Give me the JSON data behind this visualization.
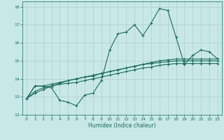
{
  "xlabel": "Humidex (Indice chaleur)",
  "ylabel": "",
  "xlim": [
    -0.5,
    23.5
  ],
  "ylim": [
    12,
    18.3
  ],
  "yticks": [
    12,
    13,
    14,
    15,
    16,
    17,
    18
  ],
  "xticks": [
    0,
    1,
    2,
    3,
    4,
    5,
    6,
    7,
    8,
    9,
    10,
    11,
    12,
    13,
    14,
    15,
    16,
    17,
    18,
    19,
    20,
    21,
    22,
    23
  ],
  "background_color": "#c8e8e8",
  "grid_color": "#b0cccc",
  "line_color": "#1a6b5a",
  "lines": [
    [
      12.9,
      13.6,
      13.6,
      13.5,
      12.8,
      12.7,
      12.5,
      13.1,
      13.2,
      13.9,
      15.6,
      16.5,
      16.6,
      17.0,
      16.4,
      17.1,
      17.9,
      17.8,
      16.3,
      14.8,
      15.3,
      15.6,
      15.5,
      15.1
    ],
    [
      12.9,
      13.6,
      13.6,
      13.7,
      13.8,
      13.9,
      14.0,
      14.1,
      14.15,
      14.3,
      14.4,
      14.5,
      14.6,
      14.7,
      14.8,
      14.9,
      15.0,
      15.05,
      15.1,
      15.1,
      15.1,
      15.1,
      15.1,
      15.1
    ],
    [
      12.9,
      13.2,
      13.4,
      13.6,
      13.75,
      13.9,
      14.0,
      14.1,
      14.2,
      14.3,
      14.4,
      14.5,
      14.6,
      14.7,
      14.8,
      14.85,
      14.9,
      14.95,
      15.0,
      15.0,
      15.0,
      15.0,
      15.0,
      15.0
    ],
    [
      12.9,
      13.3,
      13.5,
      13.6,
      13.7,
      13.75,
      13.8,
      13.9,
      14.0,
      14.1,
      14.2,
      14.3,
      14.4,
      14.5,
      14.6,
      14.65,
      14.75,
      14.8,
      14.85,
      14.85,
      14.85,
      14.85,
      14.85,
      14.85
    ]
  ]
}
